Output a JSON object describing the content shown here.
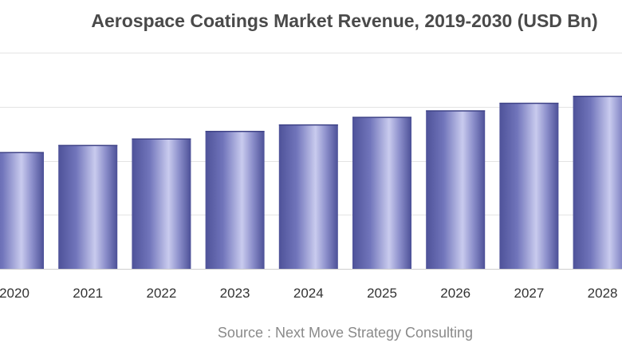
{
  "chart_data": {
    "type": "bar",
    "title": "Aerospace Coatings Market Revenue, 2019-2030 (USD Bn)",
    "xlabel": "",
    "ylabel": "",
    "categories": [
      "2020",
      "2021",
      "2022",
      "2023",
      "2024",
      "2025",
      "2026",
      "2027",
      "2028"
    ],
    "values": [
      2.16,
      2.29,
      2.41,
      2.55,
      2.67,
      2.81,
      2.93,
      3.07,
      3.2
    ],
    "ylim": [
      0,
      4
    ],
    "grid": true,
    "legend": "none",
    "bar_color": "#5b5fa8",
    "bar_highlight": "#c4c6ea",
    "source": "Source : Next Move Strategy Consulting"
  }
}
